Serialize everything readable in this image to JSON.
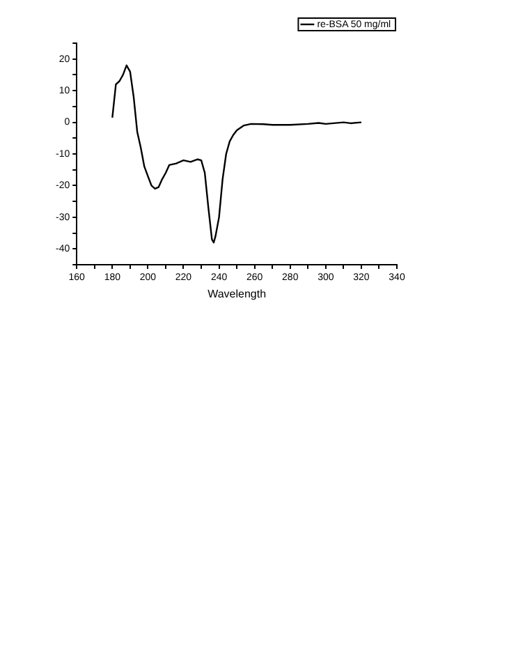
{
  "chart_data": {
    "type": "line",
    "xlabel": "Wavelength",
    "legend": "top right",
    "grid": false,
    "marker": "none",
    "line_style": "solid",
    "xlim": [
      160,
      340
    ],
    "ylim": [
      -45,
      25
    ],
    "xticks": [
      160,
      {
        "value": 170,
        "label": null
      },
      180,
      {
        "value": 190,
        "label": null
      },
      200,
      {
        "value": 210,
        "label": null
      },
      220,
      {
        "value": 230,
        "label": null
      },
      240,
      {
        "value": 250,
        "label": null
      },
      260,
      {
        "value": 270,
        "label": null
      },
      280,
      {
        "value": 290,
        "label": null
      },
      300,
      {
        "value": 310,
        "label": null
      },
      320,
      {
        "value": 330,
        "label": null
      },
      340
    ],
    "yticks": [
      {
        "value": -45,
        "label": null
      },
      -40,
      {
        "value": -35,
        "label": null
      },
      -30,
      {
        "value": -25,
        "label": null
      },
      -20,
      {
        "value": -15,
        "label": null
      },
      -10,
      {
        "value": -5,
        "label": null
      },
      0,
      {
        "value": 5,
        "label": null
      },
      10,
      {
        "value": 15,
        "label": null
      },
      20,
      {
        "value": 25,
        "label": null
      }
    ],
    "series": [
      {
        "name": "re-BSA 50 mg/ml",
        "color": "#000000",
        "x": [
          180,
          182,
          184,
          186,
          188,
          190,
          192,
          194,
          196,
          198,
          200,
          202,
          204,
          206,
          208,
          210,
          212,
          216,
          220,
          224,
          228,
          230,
          232,
          234,
          236,
          237,
          238,
          240,
          242,
          244,
          246,
          248,
          250,
          254,
          258,
          265,
          270,
          280,
          290,
          296,
          300,
          310,
          314,
          320
        ],
        "values": [
          1.5,
          12,
          13,
          15,
          18,
          16,
          8,
          -3,
          -8,
          -14,
          -17,
          -20,
          -21,
          -20.5,
          -18,
          -16,
          -13.5,
          -13,
          -12,
          -12.5,
          -11.7,
          -12,
          -16,
          -27,
          -37,
          -38,
          -36,
          -30,
          -18,
          -10,
          -6,
          -4,
          -2.5,
          -1,
          -0.5,
          -0.6,
          -0.8,
          -0.8,
          -0.5,
          -0.2,
          -0.5,
          0,
          -0.3,
          0
        ]
      }
    ]
  }
}
